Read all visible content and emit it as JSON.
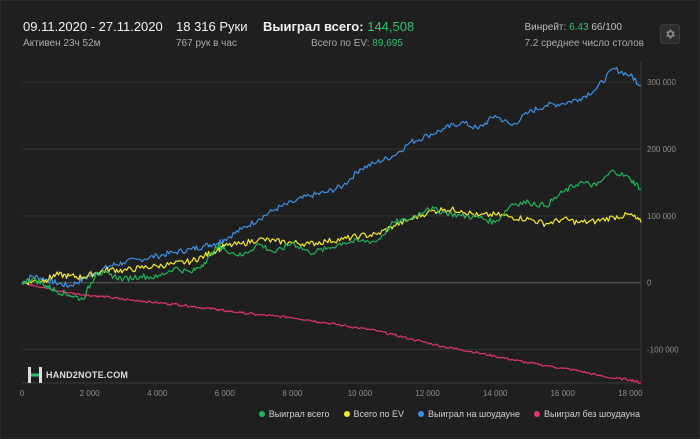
{
  "header": {
    "date_range": "09.11.2020 - 27.11.2020",
    "active": "Активен 23ч 52м",
    "hands": "18 316 Руки",
    "hands_per_hour": "767 рук в час",
    "won_total_label": "Выиграл всего:",
    "won_total_value": "144,508",
    "ev_total_label": "Всего по EV:",
    "ev_total_value": "89,695",
    "winrate_label": "Винрейт:",
    "winrate_value": "6.43",
    "winrate_suffix": "66/100",
    "avg_tables": "7.2 среднее число столов"
  },
  "logo": {
    "text": "HAND2NOTE.COM"
  },
  "colors": {
    "won_total": "#22b35a",
    "ev_total": "#f2ea2e",
    "showdown": "#3d8fe0",
    "non_showdown": "#e0356b",
    "highlight_green": "#2fc06a"
  },
  "chart_data": {
    "type": "line",
    "xlim": [
      0,
      18316
    ],
    "ylim": [
      -150000,
      330000
    ],
    "x_ticks": [
      0,
      2000,
      4000,
      6000,
      8000,
      10000,
      12000,
      14000,
      16000,
      18000
    ],
    "x_tick_labels": [
      "0",
      "2 000",
      "4 000",
      "6 000",
      "8 000",
      "10 000",
      "12 000",
      "14 000",
      "16 000",
      "18 000"
    ],
    "y_ticks": [
      300000,
      200000,
      100000,
      0,
      -100000
    ],
    "y_tick_labels": [
      "300 000",
      "200 000",
      "100 000",
      "0",
      "-100 000"
    ],
    "grid": true,
    "legend_position": "bottom-right",
    "series": [
      {
        "name": "Выиграл всего",
        "color": "#22b35a",
        "x": [
          0,
          300,
          700,
          1000,
          1400,
          1800,
          2200,
          2600,
          3000,
          3500,
          4000,
          4500,
          5000,
          5400,
          5800,
          6000,
          6500,
          7000,
          7500,
          8000,
          8500,
          9000,
          9500,
          10000,
          10500,
          11000,
          11500,
          12000,
          12500,
          13000,
          13500,
          14000,
          14500,
          15000,
          15500,
          16000,
          16500,
          17000,
          17500,
          18000,
          18316
        ],
        "y": [
          0,
          6000,
          -4000,
          -12000,
          -18000,
          -25000,
          15000,
          12000,
          5000,
          10000,
          8000,
          22000,
          15000,
          30000,
          55000,
          50000,
          40000,
          58000,
          45000,
          60000,
          45000,
          50000,
          60000,
          62000,
          62000,
          90000,
          95000,
          112000,
          105000,
          100000,
          98000,
          90000,
          118000,
          120000,
          115000,
          135000,
          150000,
          145000,
          168000,
          155000,
          140000
        ]
      },
      {
        "name": "Всего по EV",
        "color": "#f2ea2e",
        "x": [
          0,
          300,
          700,
          1000,
          1400,
          1800,
          2200,
          2600,
          3000,
          3500,
          4000,
          4500,
          5000,
          5400,
          5800,
          6000,
          6500,
          7000,
          7500,
          8000,
          8500,
          9000,
          9500,
          10000,
          10500,
          11000,
          11500,
          12000,
          12500,
          13000,
          13500,
          14000,
          14500,
          15000,
          15500,
          16000,
          16500,
          17000,
          17500,
          18000,
          18316
        ],
        "y": [
          0,
          2000,
          4000,
          12000,
          10000,
          8000,
          15000,
          20000,
          18000,
          22000,
          25000,
          28000,
          32000,
          40000,
          50000,
          55000,
          58000,
          65000,
          62000,
          60000,
          58000,
          62000,
          65000,
          70000,
          72000,
          85000,
          95000,
          105000,
          110000,
          108000,
          100000,
          102000,
          98000,
          95000,
          88000,
          95000,
          90000,
          92000,
          98000,
          102000,
          90000
        ]
      },
      {
        "name": "Выиграл на шоудауне",
        "color": "#3d8fe0",
        "x": [
          0,
          300,
          700,
          1000,
          1400,
          1800,
          2200,
          2600,
          3000,
          3500,
          4000,
          4500,
          5000,
          5400,
          5800,
          6000,
          6500,
          7000,
          7500,
          8000,
          8500,
          9000,
          9500,
          10000,
          10500,
          11000,
          11500,
          12000,
          12500,
          13000,
          13500,
          14000,
          14500,
          15000,
          15500,
          16000,
          16500,
          17000,
          17500,
          18000,
          18316
        ],
        "y": [
          0,
          10000,
          5000,
          0,
          -5000,
          5000,
          15000,
          25000,
          30000,
          35000,
          40000,
          45000,
          50000,
          55000,
          60000,
          65000,
          80000,
          95000,
          110000,
          120000,
          130000,
          135000,
          145000,
          170000,
          180000,
          190000,
          210000,
          220000,
          230000,
          240000,
          230000,
          250000,
          235000,
          255000,
          265000,
          268000,
          275000,
          290000,
          320000,
          310000,
          295000
        ]
      },
      {
        "name": "Выиграл без шоудауна",
        "color": "#e0356b",
        "x": [
          0,
          300,
          700,
          1000,
          1400,
          1800,
          2200,
          2600,
          3000,
          3500,
          4000,
          4500,
          5000,
          5400,
          5800,
          6000,
          6500,
          7000,
          7500,
          8000,
          8500,
          9000,
          9500,
          10000,
          10500,
          11000,
          11500,
          12000,
          12500,
          13000,
          13500,
          14000,
          14500,
          15000,
          15500,
          16000,
          16500,
          17000,
          17500,
          18000,
          18316
        ],
        "y": [
          0,
          -3000,
          -8000,
          -12000,
          -15000,
          -18000,
          -20000,
          -22000,
          -25000,
          -27000,
          -30000,
          -32000,
          -35000,
          -38000,
          -40000,
          -42000,
          -45000,
          -48000,
          -50000,
          -52000,
          -56000,
          -60000,
          -64000,
          -68000,
          -72000,
          -78000,
          -84000,
          -90000,
          -96000,
          -100000,
          -105000,
          -110000,
          -115000,
          -120000,
          -124000,
          -128000,
          -132000,
          -138000,
          -143000,
          -145000,
          -150000
        ]
      }
    ]
  }
}
